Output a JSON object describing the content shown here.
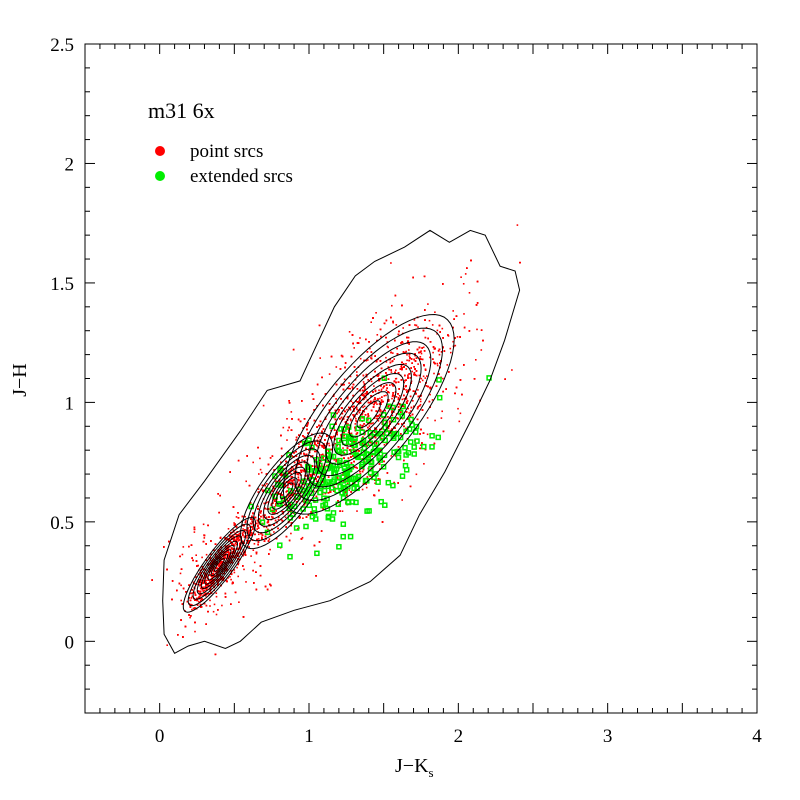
{
  "chart_data": {
    "type": "scatter",
    "title": "m31 6x",
    "xlabel": "J−K",
    "xlabel_sub": "s",
    "ylabel": "J−H",
    "xlim": [
      -0.5,
      4
    ],
    "ylim": [
      -0.3,
      2.5
    ],
    "x_ticks": [
      "0",
      "1",
      "2",
      "3",
      "4"
    ],
    "x_tick_values": [
      0,
      1,
      2,
      3,
      4
    ],
    "y_ticks": [
      "0",
      "0.5",
      "1",
      "1.5",
      "2",
      "2.5"
    ],
    "y_tick_values": [
      0,
      0.5,
      1,
      1.5,
      2,
      2.5
    ],
    "legend": [
      {
        "label": "point srcs",
        "color": "#ff0000"
      },
      {
        "label": "extended srcs",
        "color": "#00ee00"
      }
    ],
    "legend_placement": "top-left",
    "series": [
      {
        "name": "point srcs",
        "color": "#ff0000",
        "clusters": [
          {
            "center": [
              0.4,
              0.32
            ],
            "sx": 0.11,
            "sy": 0.09,
            "rho": 0.88,
            "weight": 0.3
          },
          {
            "center": [
              0.85,
              0.63
            ],
            "sx": 0.14,
            "sy": 0.11,
            "rho": 0.75,
            "weight": 0.2
          },
          {
            "center": [
              1.4,
              0.95
            ],
            "sx": 0.26,
            "sy": 0.19,
            "rho": 0.75,
            "weight": 0.5
          }
        ],
        "count": 7000
      },
      {
        "name": "extended srcs",
        "color": "#00ee00",
        "clusters": [
          {
            "center": [
              1.25,
              0.72
            ],
            "sx": 0.25,
            "sy": 0.13,
            "rho": 0.6,
            "weight": 1
          }
        ],
        "count": 260
      }
    ],
    "contours": {
      "color": "#000000",
      "outer": [
        [
          0.03,
          0.03
        ],
        [
          0.1,
          -0.05
        ],
        [
          0.19,
          -0.02
        ],
        [
          0.3,
          0.0
        ],
        [
          0.44,
          -0.03
        ],
        [
          0.54,
          0.0
        ],
        [
          0.68,
          0.08
        ],
        [
          0.9,
          0.13
        ],
        [
          1.14,
          0.17
        ],
        [
          1.41,
          0.25
        ],
        [
          1.61,
          0.36
        ],
        [
          1.74,
          0.53
        ],
        [
          1.91,
          0.71
        ],
        [
          2.08,
          0.92
        ],
        [
          2.21,
          1.09
        ],
        [
          2.31,
          1.26
        ],
        [
          2.41,
          1.47
        ],
        [
          2.38,
          1.55
        ],
        [
          2.28,
          1.57
        ],
        [
          2.18,
          1.7
        ],
        [
          2.08,
          1.72
        ],
        [
          1.94,
          1.67
        ],
        [
          1.81,
          1.72
        ],
        [
          1.64,
          1.65
        ],
        [
          1.44,
          1.59
        ],
        [
          1.31,
          1.53
        ],
        [
          1.17,
          1.4
        ],
        [
          0.94,
          1.09
        ],
        [
          0.72,
          1.05
        ],
        [
          0.54,
          0.88
        ],
        [
          0.3,
          0.67
        ],
        [
          0.13,
          0.53
        ],
        [
          0.03,
          0.34
        ],
        [
          0.02,
          0.17
        ]
      ],
      "levels": [
        2.2,
        1.9,
        1.6,
        1.35,
        1.1,
        0.9,
        0.7,
        0.5,
        0.3
      ]
    }
  }
}
